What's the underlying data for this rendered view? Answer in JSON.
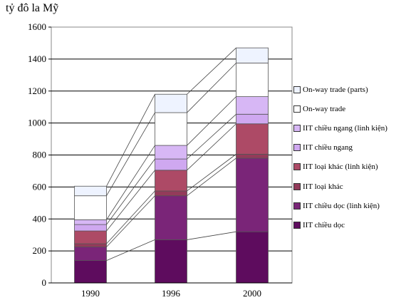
{
  "chart_data": {
    "type": "stacked-bar",
    "ylabel": "tỷ đô la Mỹ",
    "xlabel": "",
    "ylim": [
      0,
      1600
    ],
    "ytick_step": 200,
    "grid": true,
    "legend_position": "right",
    "connector_lines": true,
    "categories": [
      "1990",
      "1996",
      "2000"
    ],
    "series": [
      {
        "name": "IIT chiều dọc",
        "color": "#5e0c5e",
        "values": [
          140,
          270,
          320
        ]
      },
      {
        "name": "IIT chiều dọc (linh kiện)",
        "color": "#7a2578",
        "values": [
          85,
          275,
          460
        ]
      },
      {
        "name": "IIT loại khác",
        "color": "#933b5a",
        "values": [
          20,
          30,
          25
        ]
      },
      {
        "name": "IIT loại khác (linh kiện)",
        "color": "#ad4a66",
        "values": [
          80,
          130,
          190
        ]
      },
      {
        "name": "IIT chiều ngang",
        "color": "#cfa8f0",
        "values": [
          40,
          70,
          60
        ]
      },
      {
        "name": "IIT chiều ngang (linh kiện)",
        "color": "#d7b7f5",
        "values": [
          30,
          85,
          110
        ]
      },
      {
        "name": "On-way trade",
        "color": "#ffffff",
        "values": [
          150,
          205,
          210
        ]
      },
      {
        "name": "On-way trade (parts)",
        "color": "#eef3ff",
        "values": [
          60,
          115,
          95
        ]
      }
    ]
  }
}
